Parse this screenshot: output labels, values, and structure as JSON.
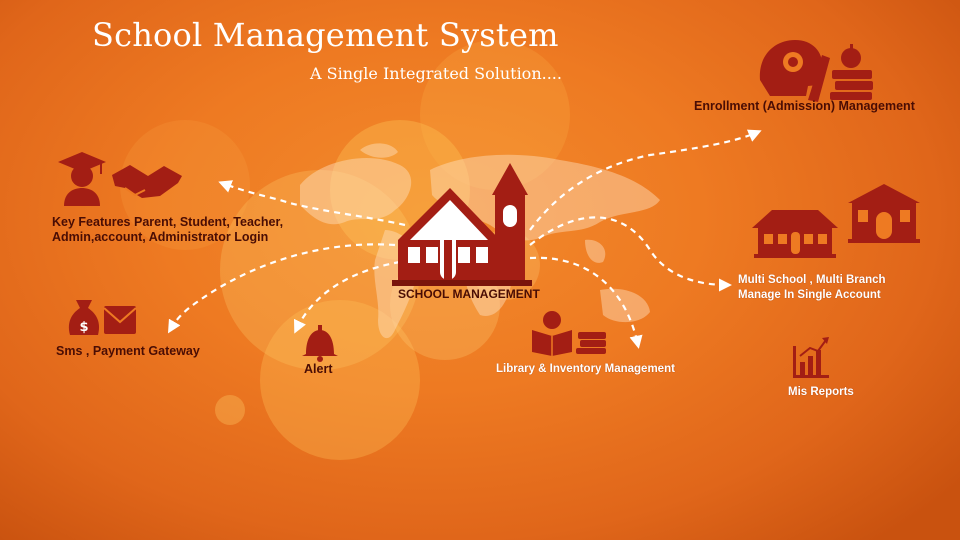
{
  "header": {
    "title": "School Management System",
    "subtitle": "A Single Integrated Solution...."
  },
  "center": {
    "label": "SCHOOL MANAGEMENT"
  },
  "features": {
    "enrollment": {
      "label": "Enrollment (Admission) Management",
      "icons": [
        "head-gear-icon",
        "books-apple-icon"
      ]
    },
    "key_features": {
      "line1": "Key Features Parent, Student,  Teacher,",
      "line2": "Admin,account, Administrator  Login",
      "icons": [
        "graduate-icon",
        "handshake-icon"
      ]
    },
    "multi_school": {
      "line1": "Multi School , Multi Branch",
      "line2": "Manage In Single Account",
      "icons": [
        "school-building-icon",
        "school-house-icon"
      ]
    },
    "sms": {
      "label": "Sms , Payment Gateway",
      "icons": [
        "money-bag-icon",
        "envelope-icon"
      ]
    },
    "alert": {
      "label": "Alert",
      "icons": [
        "bell-icon"
      ]
    },
    "library": {
      "label": "Library & Inventory Management",
      "icons": [
        "reading-student-icon",
        "book-stack-icon"
      ]
    },
    "mis": {
      "label": "Mis Reports",
      "icons": [
        "bar-chart-icon"
      ]
    }
  },
  "colors": {
    "background": "#ee7a22",
    "icon": "#a31e14",
    "icon_dark": "#7a150c",
    "label_dark": "#4a0d04",
    "text_light": "#ffffff"
  }
}
